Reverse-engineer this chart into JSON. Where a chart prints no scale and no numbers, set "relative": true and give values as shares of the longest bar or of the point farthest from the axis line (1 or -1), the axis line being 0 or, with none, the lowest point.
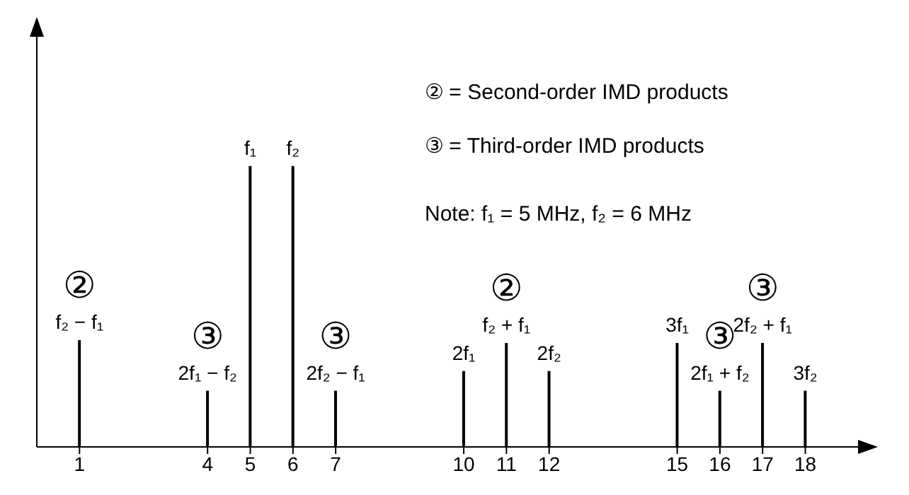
{
  "chart_data": {
    "type": "bar",
    "relative": true,
    "x": [
      1,
      4,
      5,
      6,
      7,
      10,
      11,
      12,
      15,
      16,
      17,
      18
    ],
    "values": [
      0.38,
      0.2,
      1,
      1,
      0.2,
      0.27,
      0.37,
      0.27,
      0.37,
      0.2,
      0.37,
      0.2
    ],
    "color": "#000000",
    "xlim": [
      0,
      19.5
    ],
    "xticks": [
      1,
      4,
      5,
      6,
      7,
      10,
      11,
      12,
      15,
      16,
      17,
      18
    ],
    "grid": false,
    "annotations": [
      {
        "text": "f₂ − f₁",
        "x": 1,
        "y": 0.38
      },
      {
        "text": "2f₁ − f₂",
        "x": 4,
        "y": 0.2
      },
      {
        "text": "f₁",
        "x": 5,
        "y": 1
      },
      {
        "text": "f₂",
        "x": 6,
        "y": 1
      },
      {
        "text": "2f₂ − f₁",
        "x": 7,
        "y": 0.2
      },
      {
        "text": "2f₁",
        "x": 10,
        "y": 0.27
      },
      {
        "text": "f₂ + f₁",
        "x": 11,
        "y": 0.37
      },
      {
        "text": "2f₂",
        "x": 12,
        "y": 0.27
      },
      {
        "text": "3f₁",
        "x": 15,
        "y": 0.37
      },
      {
        "text": "2f₁ + f₂",
        "x": 16,
        "y": 0.2
      },
      {
        "text": "2f₂ + f₁",
        "x": 17,
        "y": 0.37
      },
      {
        "text": "3f₂",
        "x": 18,
        "y": 0.2
      },
      {
        "text": "②",
        "x": 1,
        "y": 0.38
      },
      {
        "text": "③",
        "x": 4,
        "y": 0.2
      },
      {
        "text": "③",
        "x": 7,
        "y": 0.2
      },
      {
        "text": "②",
        "x": 11,
        "y": 0.37
      },
      {
        "text": "③",
        "x": 16,
        "y": 0.2
      },
      {
        "text": "③",
        "x": 17,
        "y": 0.37
      },
      "② = Second-order IMD products",
      "③ = Third-order IMD products",
      "Note: f₁ = 5 MHz, f₂ = 6 MHz"
    ]
  }
}
